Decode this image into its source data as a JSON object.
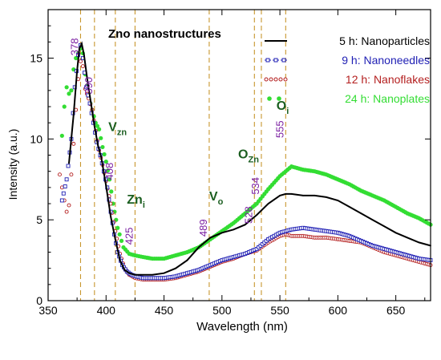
{
  "chart_data": {
    "type": "line",
    "title": "Zno nanostructures",
    "xlabel": "Wavelength (nm)",
    "ylabel": "Intensity (a.u.)",
    "xlim": [
      350,
      680
    ],
    "ylim": [
      0,
      18
    ],
    "xticks": [
      350,
      400,
      450,
      500,
      550,
      600,
      650
    ],
    "yticks": [
      0,
      5,
      10,
      15
    ],
    "grid": false,
    "legend_position": "top-right",
    "series": [
      {
        "name": "5 h: Nanoparticles",
        "color": "#000000",
        "style": "line",
        "x": [
          368,
          372,
          375,
          377,
          379,
          381,
          384,
          387,
          390,
          393,
          396,
          400,
          404,
          408,
          412,
          416,
          420,
          425,
          430,
          440,
          450,
          460,
          470,
          480,
          490,
          500,
          510,
          520,
          530,
          540,
          550,
          555,
          560,
          570,
          580,
          590,
          600,
          610,
          620,
          630,
          640,
          650,
          660,
          670,
          680
        ],
        "y": [
          8.5,
          11.5,
          14.2,
          15.6,
          15.9,
          15.2,
          13.6,
          12.2,
          10.8,
          9.6,
          8.8,
          7.1,
          5.2,
          3.8,
          2.5,
          1.9,
          1.7,
          1.6,
          1.6,
          1.6,
          1.7,
          2.0,
          2.5,
          3.3,
          3.9,
          4.2,
          4.4,
          4.7,
          5.3,
          6.0,
          6.5,
          6.6,
          6.6,
          6.5,
          6.5,
          6.4,
          6.2,
          5.8,
          5.4,
          5.0,
          4.6,
          4.2,
          3.9,
          3.6,
          3.4
        ]
      },
      {
        "name": "9 h: Nanoneedles",
        "color": "#1f1fb4",
        "style": "squares",
        "x": [
          362,
          366,
          370,
          373,
          376,
          378,
          380,
          383,
          386,
          389,
          392,
          395,
          398,
          401,
          404,
          407,
          410,
          414,
          418,
          422,
          426,
          432,
          440,
          450,
          460,
          470,
          480,
          490,
          500,
          510,
          520,
          530,
          540,
          550,
          555,
          560,
          570,
          580,
          590,
          600,
          610,
          620,
          630,
          640,
          650,
          660,
          670,
          680
        ],
        "y": [
          6.2,
          7.5,
          10.0,
          13.2,
          15.2,
          15.8,
          15.0,
          13.2,
          12.2,
          11.0,
          9.8,
          9.0,
          8.0,
          7.0,
          5.5,
          4.1,
          3.0,
          2.2,
          1.8,
          1.6,
          1.5,
          1.4,
          1.4,
          1.4,
          1.5,
          1.7,
          1.9,
          2.2,
          2.5,
          2.7,
          2.9,
          3.2,
          3.8,
          4.2,
          4.3,
          4.4,
          4.5,
          4.4,
          4.3,
          4.2,
          4.0,
          3.7,
          3.4,
          3.2,
          3.0,
          2.8,
          2.6,
          2.5
        ]
      },
      {
        "name": "12 h: Nanoflakes",
        "color": "#b41f1f",
        "style": "circles",
        "x": [
          360,
          362,
          364,
          366,
          368,
          370,
          372,
          374,
          376,
          378,
          380,
          382,
          385,
          388,
          391,
          394,
          397,
          400,
          404,
          408,
          412,
          416,
          420,
          425,
          432,
          440,
          450,
          460,
          470,
          480,
          490,
          500,
          510,
          520,
          530,
          540,
          550,
          555,
          560,
          570,
          580,
          590,
          600,
          610,
          620,
          630,
          640,
          650,
          660,
          670,
          680
        ],
        "y": [
          7.8,
          7.0,
          6.2,
          5.5,
          5.9,
          7.8,
          9.7,
          11.8,
          13.7,
          14.8,
          14.5,
          13.1,
          12.5,
          11.8,
          10.5,
          9.3,
          8.4,
          7.4,
          6.0,
          4.3,
          2.9,
          2.0,
          1.6,
          1.4,
          1.3,
          1.3,
          1.3,
          1.4,
          1.6,
          1.8,
          2.1,
          2.4,
          2.6,
          2.9,
          3.1,
          3.6,
          4.0,
          4.1,
          4.0,
          4.0,
          3.9,
          3.9,
          3.8,
          3.7,
          3.6,
          3.3,
          3.0,
          2.8,
          2.6,
          2.4,
          2.2
        ]
      },
      {
        "name": "24 h: Nanoplates",
        "color": "#33dd33",
        "style": "dots",
        "x": [
          362,
          364,
          366,
          368,
          370,
          372,
          374,
          376,
          378,
          380,
          382,
          385,
          388,
          391,
          394,
          397,
          400,
          403,
          406,
          410,
          415,
          420,
          425,
          432,
          440,
          450,
          460,
          470,
          480,
          490,
          500,
          510,
          520,
          530,
          540,
          550,
          555,
          560,
          570,
          580,
          590,
          600,
          610,
          620,
          630,
          640,
          650,
          660,
          670,
          680
        ],
        "y": [
          10.2,
          12.0,
          13.2,
          12.8,
          13.0,
          14.3,
          15.0,
          15.3,
          15.6,
          15.3,
          14.0,
          12.6,
          11.8,
          11.0,
          10.6,
          9.5,
          8.6,
          7.5,
          6.0,
          4.5,
          3.3,
          2.9,
          2.8,
          2.7,
          2.6,
          2.6,
          2.8,
          3.0,
          3.3,
          3.8,
          4.3,
          4.8,
          5.4,
          6.0,
          6.9,
          7.7,
          8.0,
          8.3,
          8.1,
          8.0,
          7.8,
          7.5,
          7.2,
          6.8,
          6.5,
          6.2,
          5.8,
          5.4,
          5.1,
          4.7
        ]
      }
    ],
    "vlines": [
      {
        "x": 378,
        "label": "378",
        "label_y": 15.7
      },
      {
        "x": 390,
        "label": "390",
        "label_y": 13.3
      },
      {
        "x": 408,
        "label": "408",
        "label_y": 8.0
      },
      {
        "x": 425,
        "label": "425",
        "label_y": 4.0
      },
      {
        "x": 489,
        "label": "489",
        "label_y": 4.5
      },
      {
        "x": 528,
        "label": "528",
        "label_y": 5.3
      },
      {
        "x": 534,
        "label": "534",
        "label_y": 7.1
      },
      {
        "x": 555,
        "label": "555",
        "label_y": 10.6
      }
    ],
    "defect_labels": [
      {
        "text": "V",
        "sub": "zn",
        "x": 402,
        "y": 10.5
      },
      {
        "text": "Zn",
        "sub": "i",
        "x": 418,
        "y": 6.0
      },
      {
        "text": "V",
        "sub": "o",
        "x": 489,
        "y": 6.2
      },
      {
        "text": "O",
        "sub": "Zn",
        "x": 514,
        "y": 8.8
      },
      {
        "text": "O",
        "sub": "i",
        "x": 547,
        "y": 11.8
      }
    ]
  }
}
